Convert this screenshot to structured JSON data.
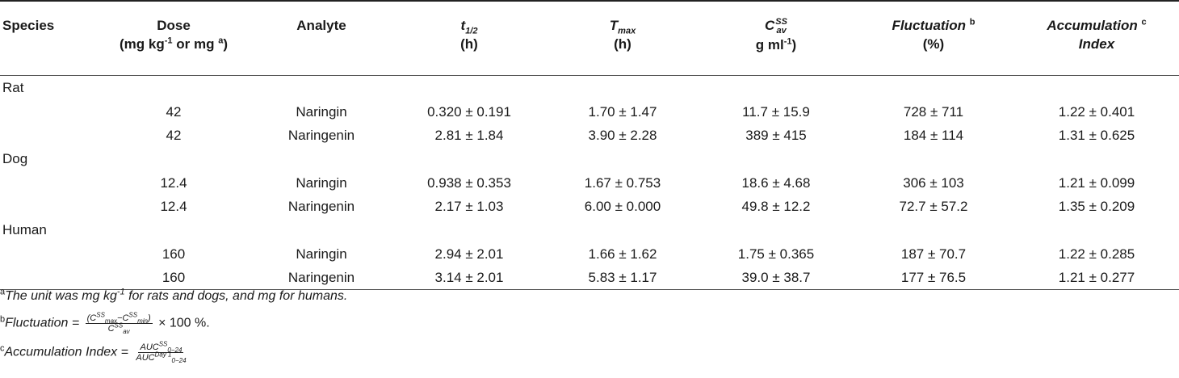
{
  "headers": {
    "species": "Species",
    "dose_line1": "Dose",
    "dose_line2_pre": "(mg kg",
    "dose_line2_sup": "-1",
    "dose_line2_mid": " or mg ",
    "dose_line2_supa": "a",
    "dose_line2_post": ")",
    "analyte": "Analyte",
    "thalf_main": "t",
    "thalf_sub": "1/2",
    "thalf_unit": "(h)",
    "tmax_main": "T",
    "tmax_sub": "max",
    "tmax_unit": "(h)",
    "cav_main": "C",
    "cav_sup": "SS",
    "cav_sub": "av",
    "cav_unit": "g ml",
    "cav_unit_sup": "-1",
    "cav_unit_post": ")",
    "fluct": "Fluctuation",
    "fluct_sup": "b",
    "fluct_unit": "(%)",
    "accum_line1": "Accumulation",
    "accum_sup": "c",
    "accum_line2": "Index"
  },
  "groups": [
    {
      "species": "Rat",
      "rows": [
        {
          "dose": "42",
          "analyte": "Naringin",
          "thalf": "0.320 ± 0.191",
          "tmax": "1.70 ± 1.47",
          "cav": "11.7 ± 15.9",
          "fluct": "728 ± 711",
          "accum": "1.22 ± 0.401"
        },
        {
          "dose": "42",
          "analyte": "Naringenin",
          "thalf": "2.81 ± 1.84",
          "tmax": "3.90 ± 2.28",
          "cav": "389 ± 415",
          "fluct": "184 ± 114",
          "accum": "1.31 ± 0.625"
        }
      ]
    },
    {
      "species": "Dog",
      "rows": [
        {
          "dose": "12.4",
          "analyte": "Naringin",
          "thalf": "0.938 ± 0.353",
          "tmax": "1.67 ± 0.753",
          "cav": "18.6 ± 4.68",
          "fluct": "306 ± 103",
          "accum": "1.21 ± 0.099"
        },
        {
          "dose": "12.4",
          "analyte": "Naringenin",
          "thalf": "2.17 ± 1.03",
          "tmax": "6.00 ± 0.000",
          "cav": "49.8 ± 12.2",
          "fluct": "72.7 ± 57.2",
          "accum": "1.35 ± 0.209"
        }
      ]
    },
    {
      "species": "Human",
      "rows": [
        {
          "dose": "160",
          "analyte": "Naringin",
          "thalf": "2.94 ± 2.01",
          "tmax": "1.66 ± 1.62",
          "cav": "1.75 ± 0.365",
          "fluct": "187 ± 70.7",
          "accum": "1.22 ± 0.285"
        },
        {
          "dose": "160",
          "analyte": "Naringenin",
          "thalf": "3.14 ± 2.01",
          "tmax": "5.83 ± 1.17",
          "cav": "39.0 ± 38.7",
          "fluct": "177 ± 76.5",
          "accum": "1.21 ± 0.277"
        }
      ]
    }
  ],
  "footnotes": {
    "a_mark": "a",
    "a_text_pre": "The unit was mg kg",
    "a_text_sup": "-1",
    "a_text_post": " for rats and dogs, and mg for humans.",
    "b_mark": "b",
    "b_label": "Fluctuation = ",
    "b_num": "(C",
    "b_num_sup1": "SS",
    "b_num_sub1": "max",
    "b_num_mid": "−C",
    "b_num_sup2": "SS",
    "b_num_sub2": "min",
    "b_num_post": ")",
    "b_den": "C",
    "b_den_sup": "SS",
    "b_den_sub": "av",
    "b_tail": " × 100 %.",
    "c_mark": "c",
    "c_label": "Accumulation  Index = ",
    "c_num": "AUC",
    "c_num_sup": "SS",
    "c_num_sub": "0−24",
    "c_den": "AUC",
    "c_den_sup": "Day 1",
    "c_den_sub": "0−24"
  }
}
